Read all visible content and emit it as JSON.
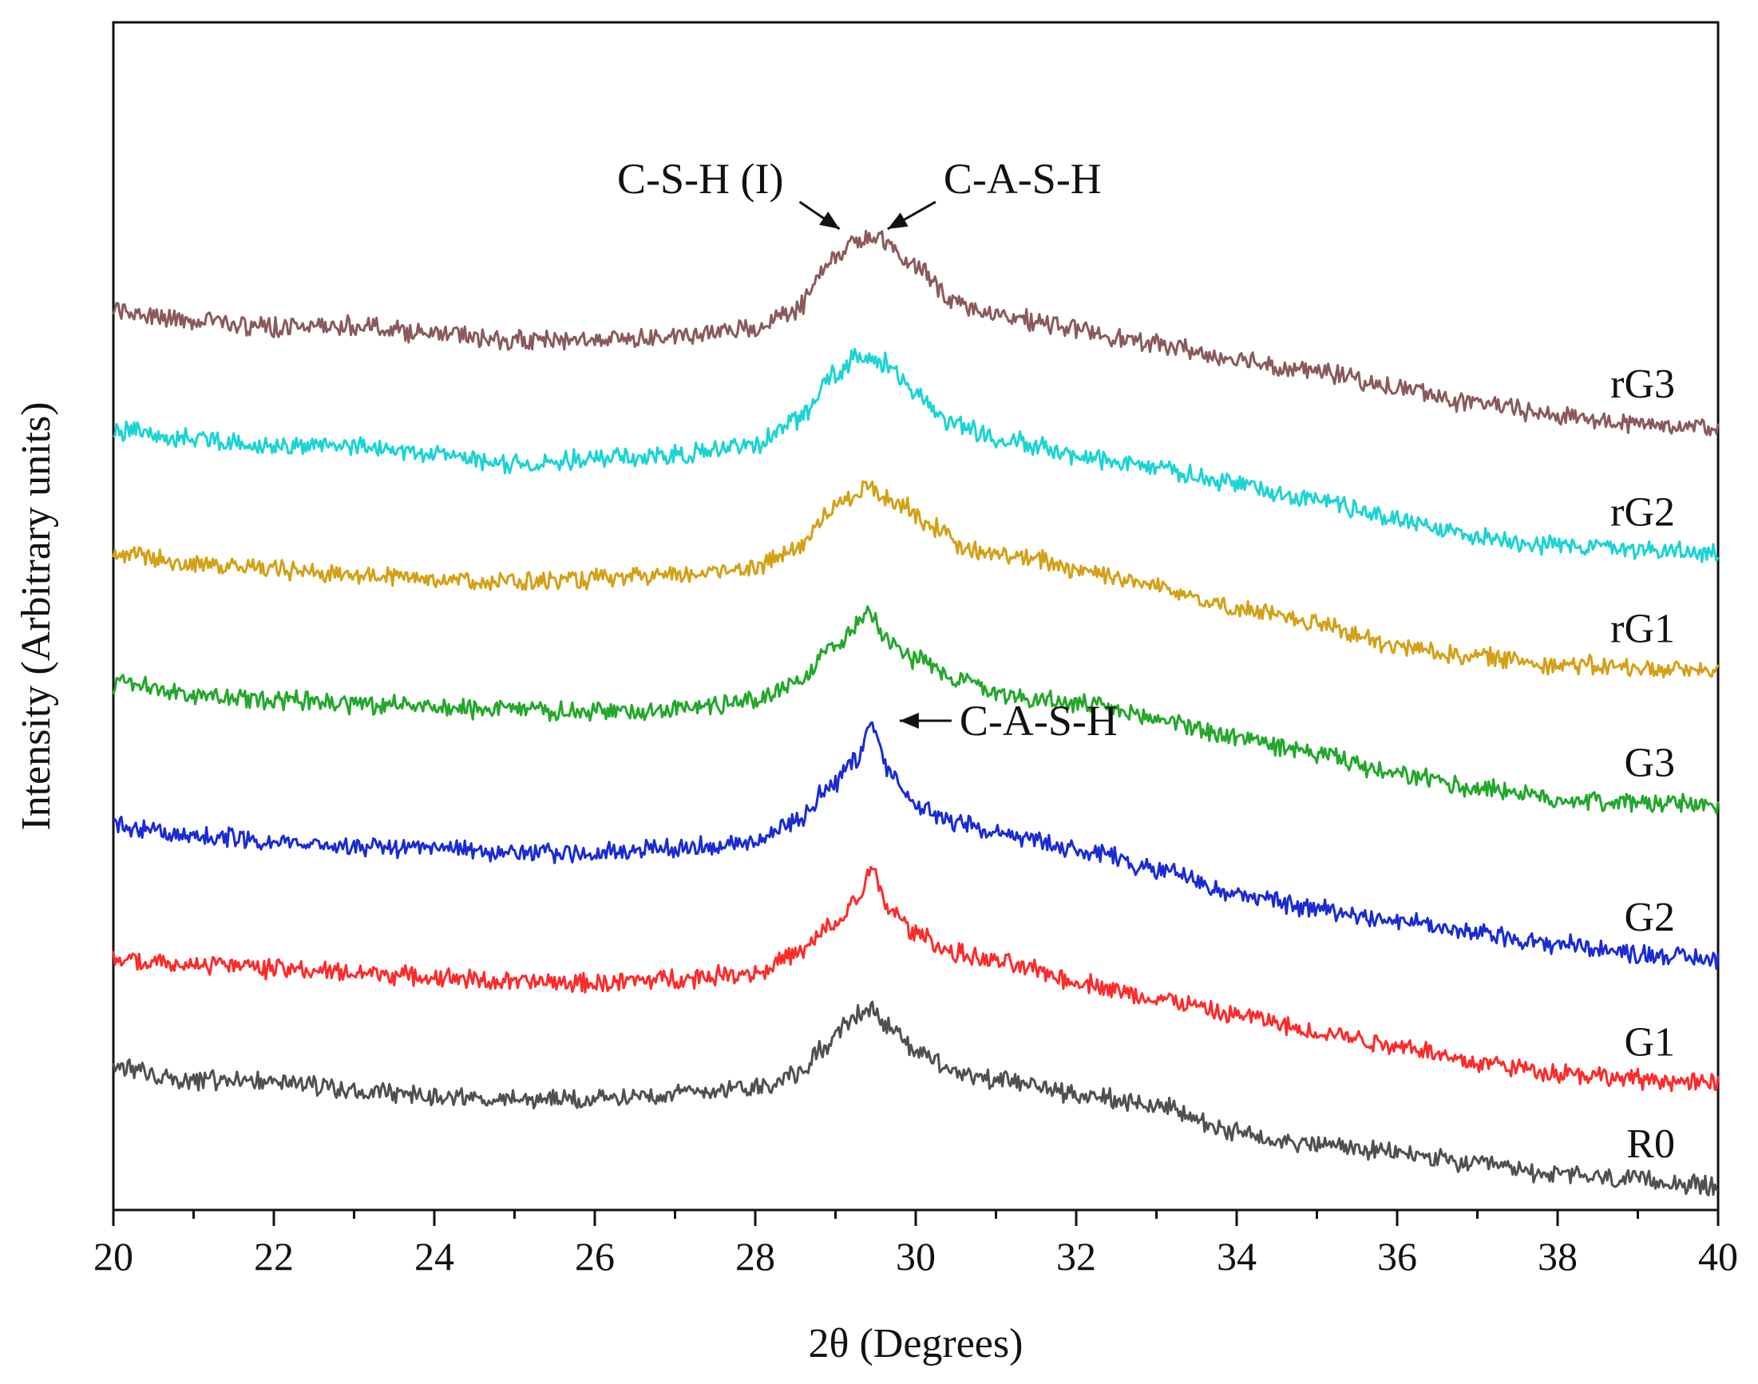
{
  "chart_data": {
    "type": "line",
    "title": "",
    "xlabel": "2θ (Degrees)",
    "ylabel": "Intensity (Arbitrary units)",
    "xlim": [
      20,
      40
    ],
    "ylim": [
      0,
      100
    ],
    "xticks": [
      20,
      22,
      24,
      26,
      28,
      30,
      32,
      34,
      36,
      38,
      40
    ],
    "xtick_labels": [
      "20",
      "22",
      "24",
      "26",
      "28",
      "30",
      "32",
      "34",
      "36",
      "38",
      "40"
    ],
    "yticks_shown": false,
    "series": [
      {
        "name": "R0",
        "color": "#505050",
        "points": [
          [
            20,
            12
          ],
          [
            21,
            11
          ],
          [
            22,
            11
          ],
          [
            23,
            10
          ],
          [
            24,
            9.6
          ],
          [
            25,
            9.3
          ],
          [
            26,
            9.3
          ],
          [
            27,
            9.9
          ],
          [
            28,
            10.4
          ],
          [
            28.5,
            11.4
          ],
          [
            28.9,
            13.8
          ],
          [
            29.2,
            16.2
          ],
          [
            29.45,
            17
          ],
          [
            29.7,
            15.2
          ],
          [
            30,
            13.5
          ],
          [
            30.5,
            11.6
          ],
          [
            31,
            11
          ],
          [
            31.5,
            10.4
          ],
          [
            32,
            9.8
          ],
          [
            33,
            8.8
          ],
          [
            34,
            6.5
          ],
          [
            35,
            5.5
          ],
          [
            36,
            4.8
          ],
          [
            37,
            3.8
          ],
          [
            38,
            3.0
          ],
          [
            39,
            2.5
          ],
          [
            40,
            2.0
          ]
        ]
      },
      {
        "name": "G1",
        "color": "#ff2a2a",
        "points": [
          [
            20,
            21
          ],
          [
            21,
            20.7
          ],
          [
            22,
            20.3
          ],
          [
            23,
            20
          ],
          [
            24,
            19.6
          ],
          [
            25,
            19.2
          ],
          [
            26,
            19.1
          ],
          [
            27,
            19.5
          ],
          [
            28,
            20
          ],
          [
            28.5,
            21.5
          ],
          [
            29,
            24
          ],
          [
            29.25,
            26
          ],
          [
            29.45,
            28.5
          ],
          [
            29.65,
            25.5
          ],
          [
            30,
            23.3
          ],
          [
            30.5,
            21.6
          ],
          [
            31,
            20.9
          ],
          [
            31.5,
            20.2
          ],
          [
            32,
            19.2
          ],
          [
            33,
            17.8
          ],
          [
            34,
            16.4
          ],
          [
            35,
            15
          ],
          [
            36,
            13.9
          ],
          [
            37,
            12.4
          ],
          [
            38,
            11.6
          ],
          [
            39,
            11
          ],
          [
            40,
            10.6
          ]
        ]
      },
      {
        "name": "G2",
        "color": "#1a2bd6",
        "points": [
          [
            20,
            32.2
          ],
          [
            21,
            31.6
          ],
          [
            22,
            31
          ],
          [
            23,
            30.6
          ],
          [
            24,
            30.4
          ],
          [
            25,
            30.1
          ],
          [
            26,
            30.1
          ],
          [
            27,
            30.4
          ],
          [
            28,
            31
          ],
          [
            28.5,
            32.8
          ],
          [
            29,
            36
          ],
          [
            29.25,
            38
          ],
          [
            29.45,
            41
          ],
          [
            29.65,
            37
          ],
          [
            30,
            34.2
          ],
          [
            30.5,
            32.5
          ],
          [
            31,
            31.6
          ],
          [
            31.5,
            31
          ],
          [
            32,
            30.4
          ],
          [
            33,
            28.8
          ],
          [
            34,
            26.6
          ],
          [
            35,
            25.4
          ],
          [
            36,
            24.4
          ],
          [
            37,
            23.3
          ],
          [
            38,
            22.4
          ],
          [
            39,
            21.6
          ],
          [
            40,
            21.1
          ]
        ]
      },
      {
        "name": "G3",
        "color": "#22a82a",
        "points": [
          [
            20,
            44.3
          ],
          [
            21,
            43.4
          ],
          [
            22,
            42.9
          ],
          [
            23,
            42.6
          ],
          [
            24,
            42.3
          ],
          [
            25,
            42.1
          ],
          [
            26,
            41.9
          ],
          [
            27,
            42.2
          ],
          [
            28,
            42.9
          ],
          [
            28.5,
            44.5
          ],
          [
            29,
            47.4
          ],
          [
            29.25,
            49.2
          ],
          [
            29.4,
            50.5
          ],
          [
            29.65,
            48.2
          ],
          [
            30,
            46.4
          ],
          [
            30.5,
            44.8
          ],
          [
            31,
            43.6
          ],
          [
            31.5,
            43
          ],
          [
            32,
            42.6
          ],
          [
            33,
            41.4
          ],
          [
            34,
            39.8
          ],
          [
            35,
            38.4
          ],
          [
            36,
            36.6
          ],
          [
            37,
            35.6
          ],
          [
            38,
            34.6
          ],
          [
            39,
            34.3
          ],
          [
            40,
            34.1
          ]
        ]
      },
      {
        "name": "rG1",
        "color": "#d4a016",
        "points": [
          [
            20,
            55.4
          ],
          [
            21,
            54.4
          ],
          [
            22,
            53.9
          ],
          [
            23,
            53.5
          ],
          [
            24,
            53.2
          ],
          [
            25,
            52.9
          ],
          [
            26,
            53.1
          ],
          [
            27,
            53.4
          ],
          [
            28,
            54.2
          ],
          [
            28.5,
            55.6
          ],
          [
            29,
            59.3
          ],
          [
            29.4,
            60.8
          ],
          [
            29.8,
            59.6
          ],
          [
            30.2,
            57.6
          ],
          [
            30.6,
            55.6
          ],
          [
            31,
            55.2
          ],
          [
            31.5,
            54.8
          ],
          [
            32,
            54
          ],
          [
            33,
            52.6
          ],
          [
            34,
            50.6
          ],
          [
            35,
            49.4
          ],
          [
            36,
            47.4
          ],
          [
            37,
            46.6
          ],
          [
            38,
            46
          ],
          [
            39,
            45.6
          ],
          [
            40,
            45.4
          ]
        ]
      },
      {
        "name": "rG2",
        "color": "#1ad4d4",
        "points": [
          [
            20,
            65.7
          ],
          [
            21,
            64.9
          ],
          [
            22,
            64.3
          ],
          [
            23,
            64.3
          ],
          [
            24,
            63.6
          ],
          [
            25,
            62.8
          ],
          [
            26,
            63.2
          ],
          [
            27,
            63.6
          ],
          [
            28,
            64.5
          ],
          [
            28.5,
            66.5
          ],
          [
            29,
            70.4
          ],
          [
            29.25,
            71.7
          ],
          [
            29.6,
            71.4
          ],
          [
            30,
            68.7
          ],
          [
            30.5,
            66.2
          ],
          [
            31,
            65
          ],
          [
            31.5,
            64.4
          ],
          [
            32,
            63.5
          ],
          [
            33,
            62.4
          ],
          [
            34,
            61.1
          ],
          [
            35,
            59.8
          ],
          [
            36,
            58.2
          ],
          [
            37,
            56.7
          ],
          [
            38,
            56
          ],
          [
            39,
            55.7
          ],
          [
            40,
            55.2
          ]
        ]
      },
      {
        "name": "rG3",
        "color": "#8a5a5a",
        "points": [
          [
            20,
            75.6
          ],
          [
            21,
            75
          ],
          [
            22,
            74.3
          ],
          [
            23,
            74.5
          ],
          [
            24,
            73.8
          ],
          [
            25,
            73.2
          ],
          [
            26,
            73.3
          ],
          [
            27,
            73.5
          ],
          [
            28,
            74.2
          ],
          [
            28.5,
            75.9
          ],
          [
            29,
            80.2
          ],
          [
            29.25,
            81.5
          ],
          [
            29.5,
            81.8
          ],
          [
            30,
            79.5
          ],
          [
            30.5,
            76.5
          ],
          [
            31,
            75.2
          ],
          [
            31.5,
            74.9
          ],
          [
            32,
            74.1
          ],
          [
            33,
            72.9
          ],
          [
            34,
            71.6
          ],
          [
            35,
            70.6
          ],
          [
            36,
            69.2
          ],
          [
            37,
            67.9
          ],
          [
            38,
            66.9
          ],
          [
            39,
            66.2
          ],
          [
            40,
            66
          ]
        ]
      }
    ],
    "annotations": [
      {
        "text": "C-S-H (I)",
        "target": [
          29.05,
          82.6
        ],
        "anchor": "end"
      },
      {
        "text": "C-A-S-H",
        "target": [
          29.65,
          82.6
        ],
        "anchor": "start"
      },
      {
        "text": "C-A-S-H",
        "target": [
          29.8,
          41.2
        ],
        "anchor": "start"
      }
    ]
  }
}
